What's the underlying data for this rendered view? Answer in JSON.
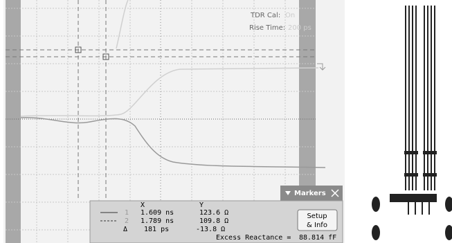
{
  "display": {
    "tdr_cal_label": "TDR Cal:",
    "tdr_cal_value": "On",
    "rise_time_label": "Rise Time:",
    "rise_time_value": "200 ps"
  },
  "markers": {
    "title": "Markers",
    "col_x": "X",
    "col_y": "Y",
    "marker_1": "1",
    "marker_2": "2",
    "rows": [
      [
        "1.609 ns",
        "123.6 Ω"
      ],
      [
        "1.789 ns",
        "109.8 Ω"
      ]
    ],
    "delta_symbol": "Δ",
    "delta": [
      "181 ps",
      "-13.8 Ω"
    ],
    "excess_label": "Excess Reactance =",
    "excess_value": "88.814 fF",
    "button_line1": "Setup",
    "button_line2": "& Info"
  }
}
